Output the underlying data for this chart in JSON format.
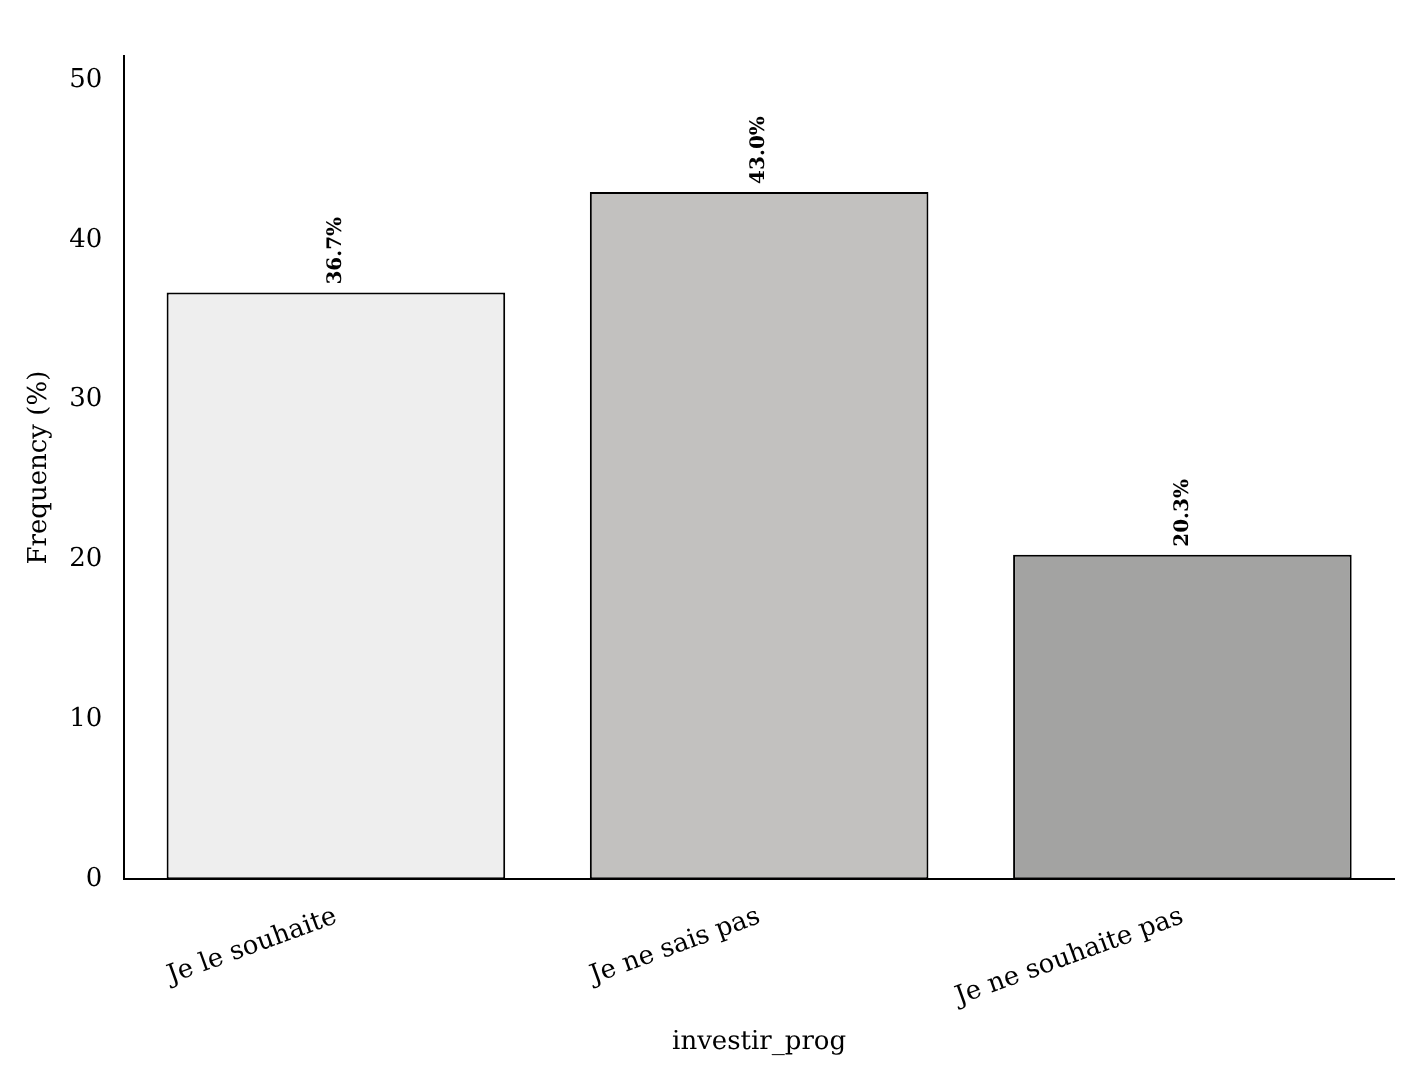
{
  "chart_data": {
    "type": "bar",
    "xlabel": "investir_prog",
    "ylabel": "Frequency (%)",
    "categories": [
      "Je le souhaite",
      "Je ne sais pas",
      "Je ne souhaite pas"
    ],
    "values": [
      36.7,
      43.0,
      20.3
    ],
    "colors": [
      "#eeeeee",
      "#c2c1bf",
      "#a3a3a2"
    ],
    "value_labels": [
      "36.7%",
      "43.0%",
      "20.3%"
    ],
    "ylim": [
      0,
      51.5
    ],
    "yticks": [
      0,
      10,
      20,
      30,
      40,
      50
    ],
    "grid": false,
    "legend": false
  }
}
